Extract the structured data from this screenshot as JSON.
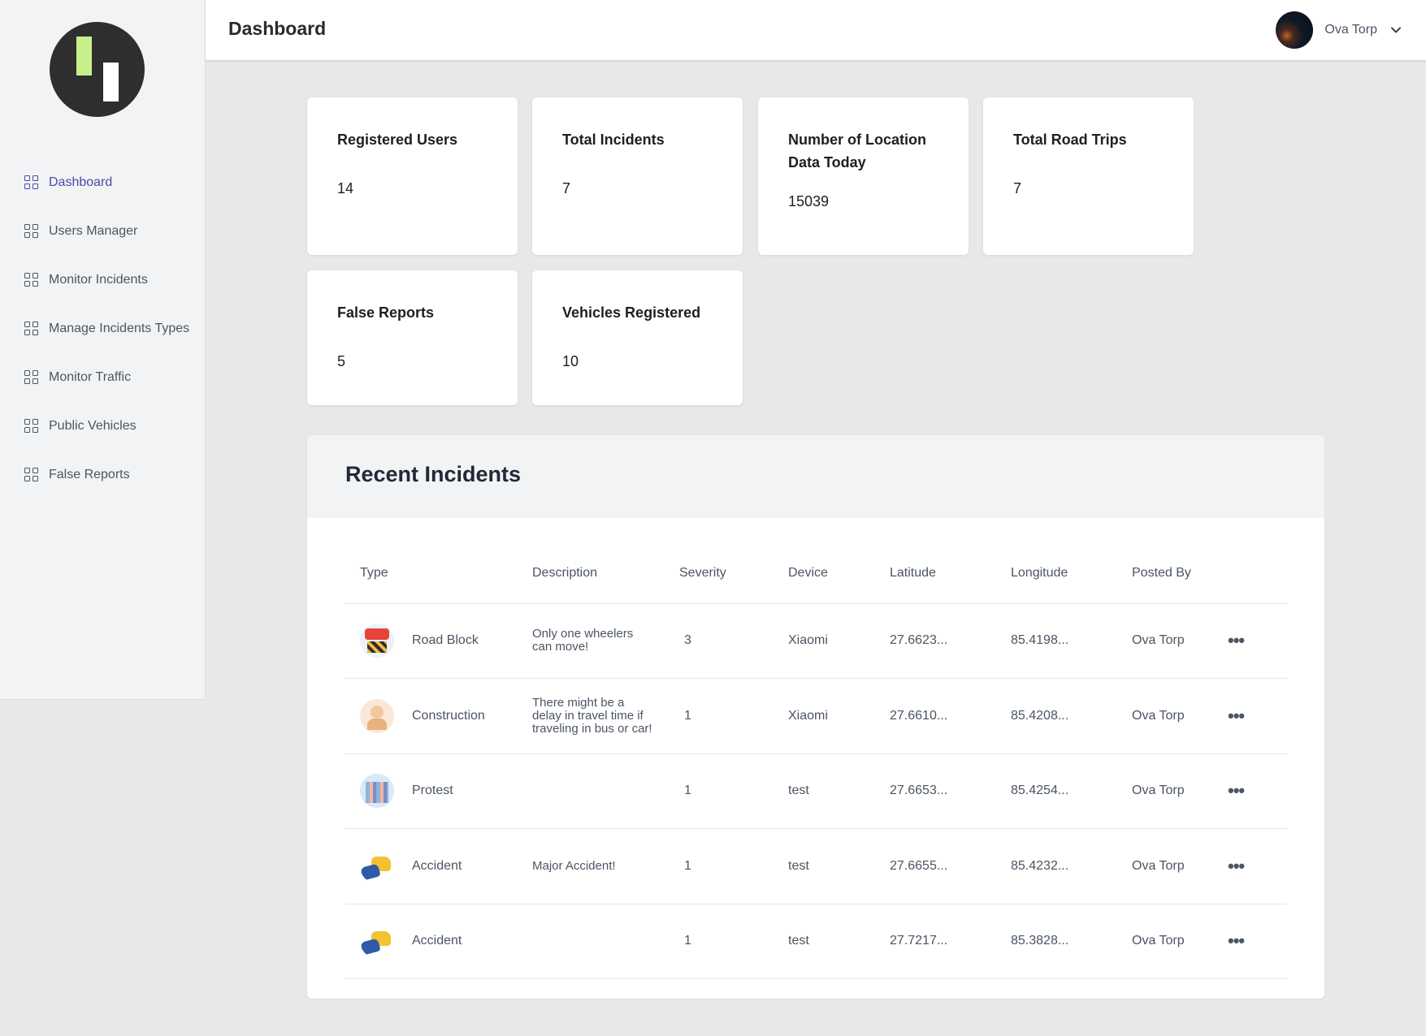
{
  "header": {
    "title": "Dashboard",
    "user_name": "Ova Torp"
  },
  "sidebar": {
    "items": [
      {
        "label": "Dashboard",
        "active": true
      },
      {
        "label": "Users Manager"
      },
      {
        "label": "Monitor Incidents"
      },
      {
        "label": "Manage Incidents Types"
      },
      {
        "label": "Monitor Traffic"
      },
      {
        "label": "Public Vehicles"
      },
      {
        "label": "False Reports"
      }
    ]
  },
  "stats": [
    {
      "title": "Registered Users",
      "value": "14"
    },
    {
      "title": "Total Incidents",
      "value": "7"
    },
    {
      "title": "Number of Location Data Today",
      "value": "15039"
    },
    {
      "title": "Total Road Trips",
      "value": "7"
    },
    {
      "title": "False Reports",
      "value": "5"
    },
    {
      "title": "Vehicles Registered",
      "value": "10"
    }
  ],
  "incidents": {
    "title": "Recent Incidents",
    "columns": [
      "Type",
      "Description",
      "Severity",
      "Device",
      "Latitude",
      "Longitude",
      "Posted By"
    ],
    "rows": [
      {
        "type": "Road Block",
        "icon": "road-block-image",
        "description": "Only one wheelers can move!",
        "severity": "3",
        "device": "Xiaomi",
        "latitude": "27.6623...",
        "longitude": "85.4198...",
        "posted_by": "Ova Torp",
        "more": "•••"
      },
      {
        "type": "Construction",
        "icon": "construction-image",
        "description": "There might be a delay in travel time if traveling in bus or car!",
        "severity": "1",
        "device": "Xiaomi",
        "latitude": "27.6610...",
        "longitude": "85.4208...",
        "posted_by": "Ova Torp",
        "more": "•••"
      },
      {
        "type": "Protest",
        "icon": "protest-image",
        "description": "",
        "severity": "1",
        "device": "test",
        "latitude": "27.6653...",
        "longitude": "85.4254...",
        "posted_by": "Ova Torp",
        "more": "•••"
      },
      {
        "type": "Accident",
        "icon": "accident-image",
        "description": "Major Accident!",
        "severity": "1",
        "device": "test",
        "latitude": "27.6655...",
        "longitude": "85.4232...",
        "posted_by": "Ova Torp",
        "more": "•••"
      },
      {
        "type": "Accident",
        "icon": "accident-image",
        "description": "",
        "severity": "1",
        "device": "test",
        "latitude": "27.7217...",
        "longitude": "85.3828...",
        "posted_by": "Ova Torp",
        "more": "•••"
      }
    ]
  },
  "colors": {
    "accent": "#4f46a8",
    "background": "#e7e8ea",
    "sidebar": "#f2f3f4"
  }
}
